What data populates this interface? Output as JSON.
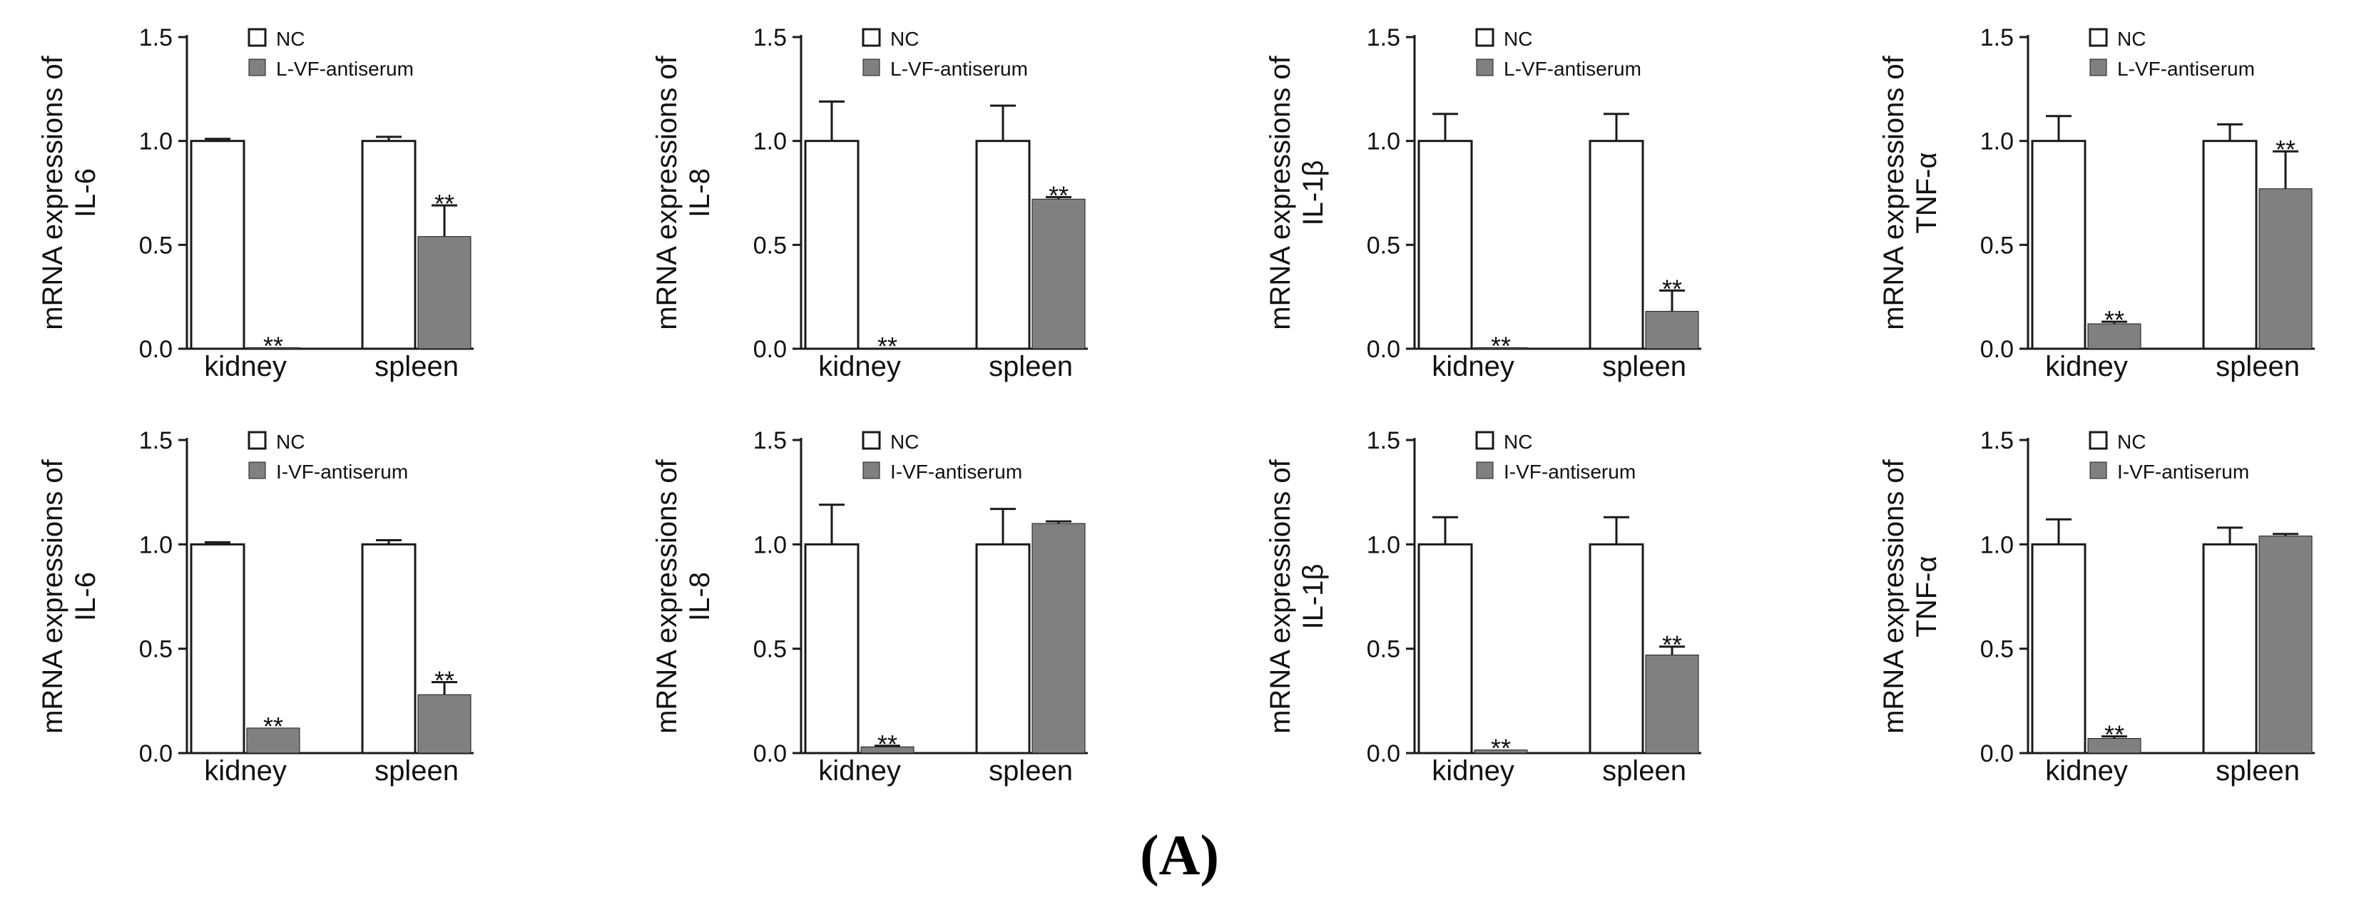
{
  "figure_label": "(A)",
  "colors": {
    "nc": "#ffffff",
    "treated": "#808080",
    "stroke": "#1a1a1a"
  },
  "chart_data": [
    {
      "type": "bar",
      "ylabel_line1": "mRNA expressions of",
      "ylabel_line2": "IL-6",
      "categories": [
        "kidney",
        "spleen"
      ],
      "ylim": [
        0,
        1.5
      ],
      "yticks": [
        "0.0",
        "0.5",
        "1.0",
        "1.5"
      ],
      "series": [
        {
          "name": "NC",
          "values": [
            1.0,
            1.0
          ],
          "errors": [
            0.01,
            0.02
          ]
        },
        {
          "name": "L-VF-antiserum",
          "values": [
            0.005,
            0.54
          ],
          "errors": [
            0.0,
            0.15
          ]
        }
      ],
      "annotations": [
        "",
        "",
        "**",
        "**"
      ]
    },
    {
      "type": "bar",
      "ylabel_line1": "mRNA expressions of",
      "ylabel_line2": "IL-8",
      "categories": [
        "kidney",
        "spleen"
      ],
      "ylim": [
        0,
        1.5
      ],
      "yticks": [
        "0.0",
        "0.5",
        "1.0",
        "1.5"
      ],
      "series": [
        {
          "name": "NC",
          "values": [
            1.0,
            1.0
          ],
          "errors": [
            0.19,
            0.17
          ]
        },
        {
          "name": "L-VF-antiserum",
          "values": [
            0.003,
            0.72
          ],
          "errors": [
            0.0,
            0.01
          ]
        }
      ],
      "annotations": [
        "",
        "",
        "**",
        "**"
      ]
    },
    {
      "type": "bar",
      "ylabel_line1": "mRNA expressions of",
      "ylabel_line2": "IL-1β",
      "categories": [
        "kidney",
        "spleen"
      ],
      "ylim": [
        0,
        1.5
      ],
      "yticks": [
        "0.0",
        "0.5",
        "1.0",
        "1.5"
      ],
      "series": [
        {
          "name": "NC",
          "values": [
            1.0,
            1.0
          ],
          "errors": [
            0.13,
            0.13
          ]
        },
        {
          "name": "L-VF-antiserum",
          "values": [
            0.005,
            0.18
          ],
          "errors": [
            0.0,
            0.1
          ]
        }
      ],
      "annotations": [
        "",
        "",
        "**",
        "**"
      ]
    },
    {
      "type": "bar",
      "ylabel_line1": "mRNA expressions of",
      "ylabel_line2": "TNF-α",
      "categories": [
        "kidney",
        "spleen"
      ],
      "ylim": [
        0,
        1.5
      ],
      "yticks": [
        "0.0",
        "0.5",
        "1.0",
        "1.5"
      ],
      "series": [
        {
          "name": "NC",
          "values": [
            1.0,
            1.0
          ],
          "errors": [
            0.12,
            0.08
          ]
        },
        {
          "name": "L-VF-antiserum",
          "values": [
            0.12,
            0.77
          ],
          "errors": [
            0.01,
            0.18
          ]
        }
      ],
      "annotations": [
        "",
        "",
        "**",
        "**"
      ]
    },
    {
      "type": "bar",
      "ylabel_line1": "mRNA expressions of",
      "ylabel_line2": "IL-6",
      "categories": [
        "kidney",
        "spleen"
      ],
      "ylim": [
        0,
        1.5
      ],
      "yticks": [
        "0.0",
        "0.5",
        "1.0",
        "1.5"
      ],
      "series": [
        {
          "name": "NC",
          "values": [
            1.0,
            1.0
          ],
          "errors": [
            0.01,
            0.02
          ]
        },
        {
          "name": "I-VF-antiserum",
          "values": [
            0.12,
            0.28
          ],
          "errors": [
            0.0,
            0.06
          ]
        }
      ],
      "annotations": [
        "",
        "",
        "**",
        "**"
      ]
    },
    {
      "type": "bar",
      "ylabel_line1": "mRNA expressions of",
      "ylabel_line2": "IL-8",
      "categories": [
        "kidney",
        "spleen"
      ],
      "ylim": [
        0,
        1.5
      ],
      "yticks": [
        "0.0",
        "0.5",
        "1.0",
        "1.5"
      ],
      "series": [
        {
          "name": "NC",
          "values": [
            1.0,
            1.0
          ],
          "errors": [
            0.19,
            0.17
          ]
        },
        {
          "name": "I-VF-antiserum",
          "values": [
            0.03,
            1.1
          ],
          "errors": [
            0.005,
            0.01
          ]
        }
      ],
      "annotations": [
        "",
        "",
        "**",
        ""
      ]
    },
    {
      "type": "bar",
      "ylabel_line1": "mRNA expressions of",
      "ylabel_line2": "IL-1β",
      "categories": [
        "kidney",
        "spleen"
      ],
      "ylim": [
        0,
        1.5
      ],
      "yticks": [
        "0.0",
        "0.5",
        "1.0",
        "1.5"
      ],
      "series": [
        {
          "name": "NC",
          "values": [
            1.0,
            1.0
          ],
          "errors": [
            0.13,
            0.13
          ]
        },
        {
          "name": "I-VF-antiserum",
          "values": [
            0.015,
            0.47
          ],
          "errors": [
            0.0,
            0.04
          ]
        }
      ],
      "annotations": [
        "",
        "",
        "**",
        "**"
      ]
    },
    {
      "type": "bar",
      "ylabel_line1": "mRNA expressions of",
      "ylabel_line2": "TNF-α",
      "categories": [
        "kidney",
        "spleen"
      ],
      "ylim": [
        0,
        1.5
      ],
      "yticks": [
        "0.0",
        "0.5",
        "1.0",
        "1.5"
      ],
      "series": [
        {
          "name": "NC",
          "values": [
            1.0,
            1.0
          ],
          "errors": [
            0.12,
            0.08
          ]
        },
        {
          "name": "I-VF-antiserum",
          "values": [
            0.07,
            1.04
          ],
          "errors": [
            0.01,
            0.01
          ]
        }
      ],
      "annotations": [
        "",
        "",
        "**",
        ""
      ]
    }
  ]
}
